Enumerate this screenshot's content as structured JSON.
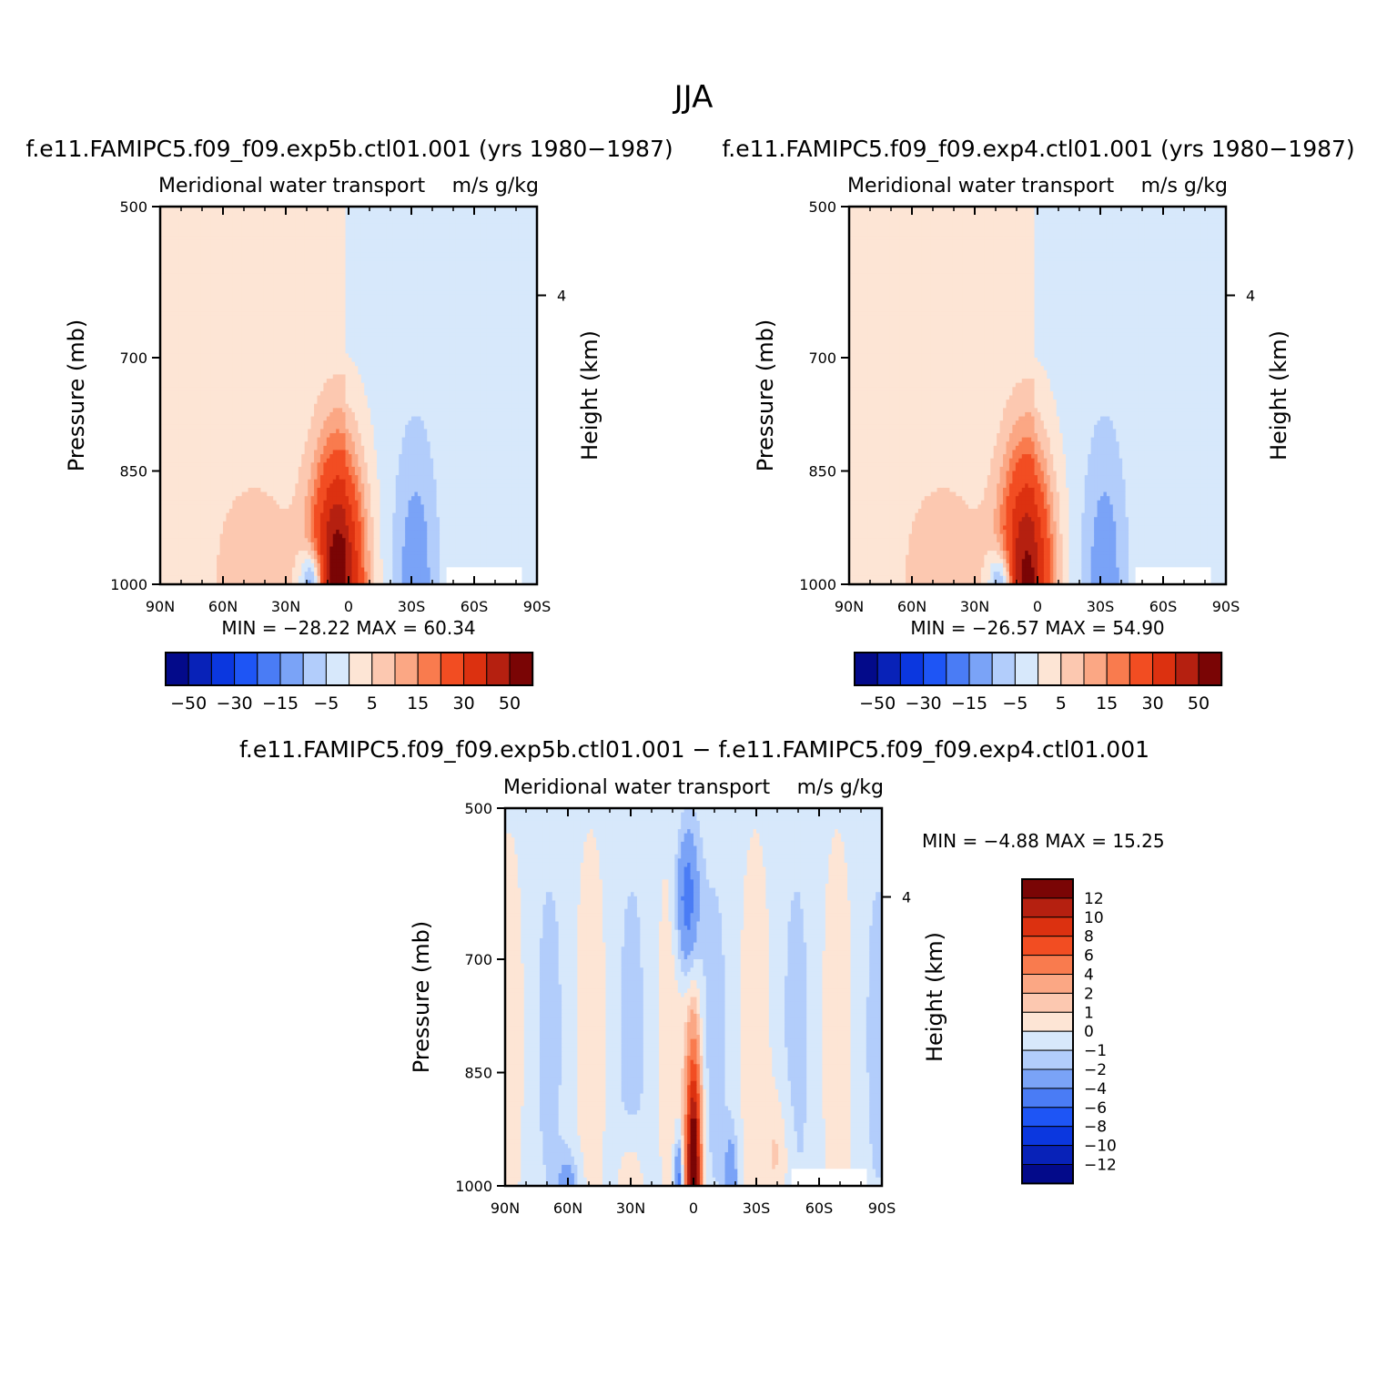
{
  "figure": {
    "title": "JJA",
    "diff_title": "f.e11.FAMIPC5.f09_f09.exp5b.ctl01.001 − f.e11.FAMIPC5.f09_f09.exp4.ctl01.001"
  },
  "panels": [
    {
      "case_title": "f.e11.FAMIPC5.f09_f09.exp5b.ctl01.001 (yrs 1980−1987)",
      "var_left": "Meridional water transport",
      "var_right": "m/s g/kg",
      "ylabel_left": "Pressure (mb)",
      "ylabel_right": "Height (km)",
      "minmax": "MIN =  −28.22    MAX =    60.34"
    },
    {
      "case_title": "f.e11.FAMIPC5.f09_f09.exp4.ctl01.001 (yrs 1980−1987)",
      "var_left": "Meridional water transport",
      "var_right": "m/s g/kg",
      "ylabel_left": "Pressure (mb)",
      "ylabel_right": "Height (km)",
      "minmax": "MIN =  −26.57    MAX =    54.90"
    },
    {
      "case_title": "",
      "var_left": "Meridional water transport",
      "var_right": "m/s g/kg",
      "ylabel_left": "Pressure (mb)",
      "ylabel_right": "Height (km)",
      "minmax": "MIN =    −4.88    MAX =    15.25"
    }
  ],
  "chart_data": [
    {
      "type": "heatmap",
      "title": "f.e11.FAMIPC5.f09_f09.exp5b.ctl01.001 (yrs 1980−1987)",
      "subtitle": "Meridional water transport  m/s g/kg",
      "xlabel": "",
      "ylabel": "Pressure (mb)",
      "y2label": "Height (km)",
      "x_ticks": [
        "90N",
        "60N",
        "30N",
        "0",
        "30S",
        "60S",
        "90S"
      ],
      "y_ticks": [
        500,
        700,
        850,
        1000
      ],
      "y2_ticks": [
        4
      ],
      "xlim": [
        90,
        -90
      ],
      "ylim": [
        1000,
        500
      ],
      "min": -28.22,
      "max": 60.34,
      "colorbar_labels": [
        "−50",
        "−30",
        "−15",
        "−5",
        "5",
        "15",
        "30",
        "50"
      ],
      "features": [
        {
          "lat": 5,
          "p_top": 740,
          "p_bottom": 1000,
          "value": 55,
          "note": "equatorial maximum"
        },
        {
          "lat": -30,
          "p_top": 790,
          "p_bottom": 1000,
          "value": -10,
          "note": "southern subtropical minimum"
        },
        {
          "lat": 17,
          "p_top": 940,
          "p_bottom": 1000,
          "value": -28,
          "note": "near-surface minimum"
        },
        {
          "lat": 40,
          "p_top": 800,
          "p_bottom": 1000,
          "value": 3,
          "note": "northern midlatitude positive"
        }
      ]
    },
    {
      "type": "heatmap",
      "title": "f.e11.FAMIPC5.f09_f09.exp4.ctl01.001 (yrs 1980−1987)",
      "subtitle": "Meridional water transport  m/s g/kg",
      "xlabel": "",
      "ylabel": "Pressure (mb)",
      "y2label": "Height (km)",
      "x_ticks": [
        "90N",
        "60N",
        "30N",
        "0",
        "30S",
        "60S",
        "90S"
      ],
      "y_ticks": [
        500,
        700,
        850,
        1000
      ],
      "y2_ticks": [
        4
      ],
      "xlim": [
        90,
        -90
      ],
      "ylim": [
        1000,
        500
      ],
      "min": -26.57,
      "max": 54.9,
      "colorbar_labels": [
        "−50",
        "−30",
        "−15",
        "−5",
        "5",
        "15",
        "30",
        "50"
      ],
      "features": [
        {
          "lat": 5,
          "p_top": 760,
          "p_bottom": 1000,
          "value": 50,
          "note": "equatorial maximum"
        },
        {
          "lat": -30,
          "p_top": 810,
          "p_bottom": 1000,
          "value": -10,
          "note": "southern subtropical minimum"
        },
        {
          "lat": 17,
          "p_top": 940,
          "p_bottom": 1000,
          "value": -26,
          "note": "near-surface minimum"
        },
        {
          "lat": 40,
          "p_top": 810,
          "p_bottom": 1000,
          "value": 3,
          "note": "northern midlatitude positive"
        }
      ]
    },
    {
      "type": "heatmap",
      "title": "f.e11.FAMIPC5.f09_f09.exp5b.ctl01.001 − f.e11.FAMIPC5.f09_f09.exp4.ctl01.001",
      "subtitle": "Meridional water transport  m/s g/kg",
      "xlabel": "",
      "ylabel": "Pressure (mb)",
      "y2label": "Height (km)",
      "x_ticks": [
        "90N",
        "60N",
        "30N",
        "0",
        "30S",
        "60S",
        "90S"
      ],
      "y_ticks": [
        500,
        700,
        850,
        1000
      ],
      "y2_ticks": [
        4
      ],
      "xlim": [
        90,
        -90
      ],
      "ylim": [
        1000,
        500
      ],
      "min": -4.88,
      "max": 15.25,
      "colorbar_labels": [
        "12",
        "10",
        "8",
        "6",
        "4",
        "2",
        "1",
        "0",
        "−1",
        "−2",
        "−4",
        "−6",
        "−8",
        "−10",
        "−12"
      ],
      "features": [
        {
          "lat": 0,
          "p_top": 790,
          "p_bottom": 1000,
          "value": 15,
          "note": "equatorial positive difference"
        },
        {
          "lat": 3,
          "p_top": 540,
          "p_bottom": 740,
          "value": -4,
          "note": "upper-level negative difference"
        },
        {
          "lat": 6,
          "p_top": 930,
          "p_bottom": 1000,
          "value": -4.88,
          "note": "near-surface negative"
        },
        {
          "lat": -20,
          "p_top": 920,
          "p_bottom": 1000,
          "value": -3,
          "note": "southern tropical negative"
        }
      ]
    }
  ],
  "colors": {
    "full_cmap": [
      "#030a8a",
      "#0822b8",
      "#0b37df",
      "#1e55f5",
      "#4a7cf5",
      "#7aa3f7",
      "#b2cdfb",
      "#d7e8fb",
      "#fde5d5",
      "#fcc8b0",
      "#fba784",
      "#f97b4e",
      "#f24d22",
      "#dc3110",
      "#b52010",
      "#7a0505"
    ],
    "diff_cmap_top_to_bottom": [
      "#7a0505",
      "#b52010",
      "#dc3110",
      "#f24d22",
      "#f97b4e",
      "#fba784",
      "#fcc8b0",
      "#fde5d5",
      "#d7e8fb",
      "#b2cdfb",
      "#7aa3f7",
      "#4a7cf5",
      "#1e55f5",
      "#0b37df",
      "#0822b8",
      "#030a8a"
    ]
  }
}
